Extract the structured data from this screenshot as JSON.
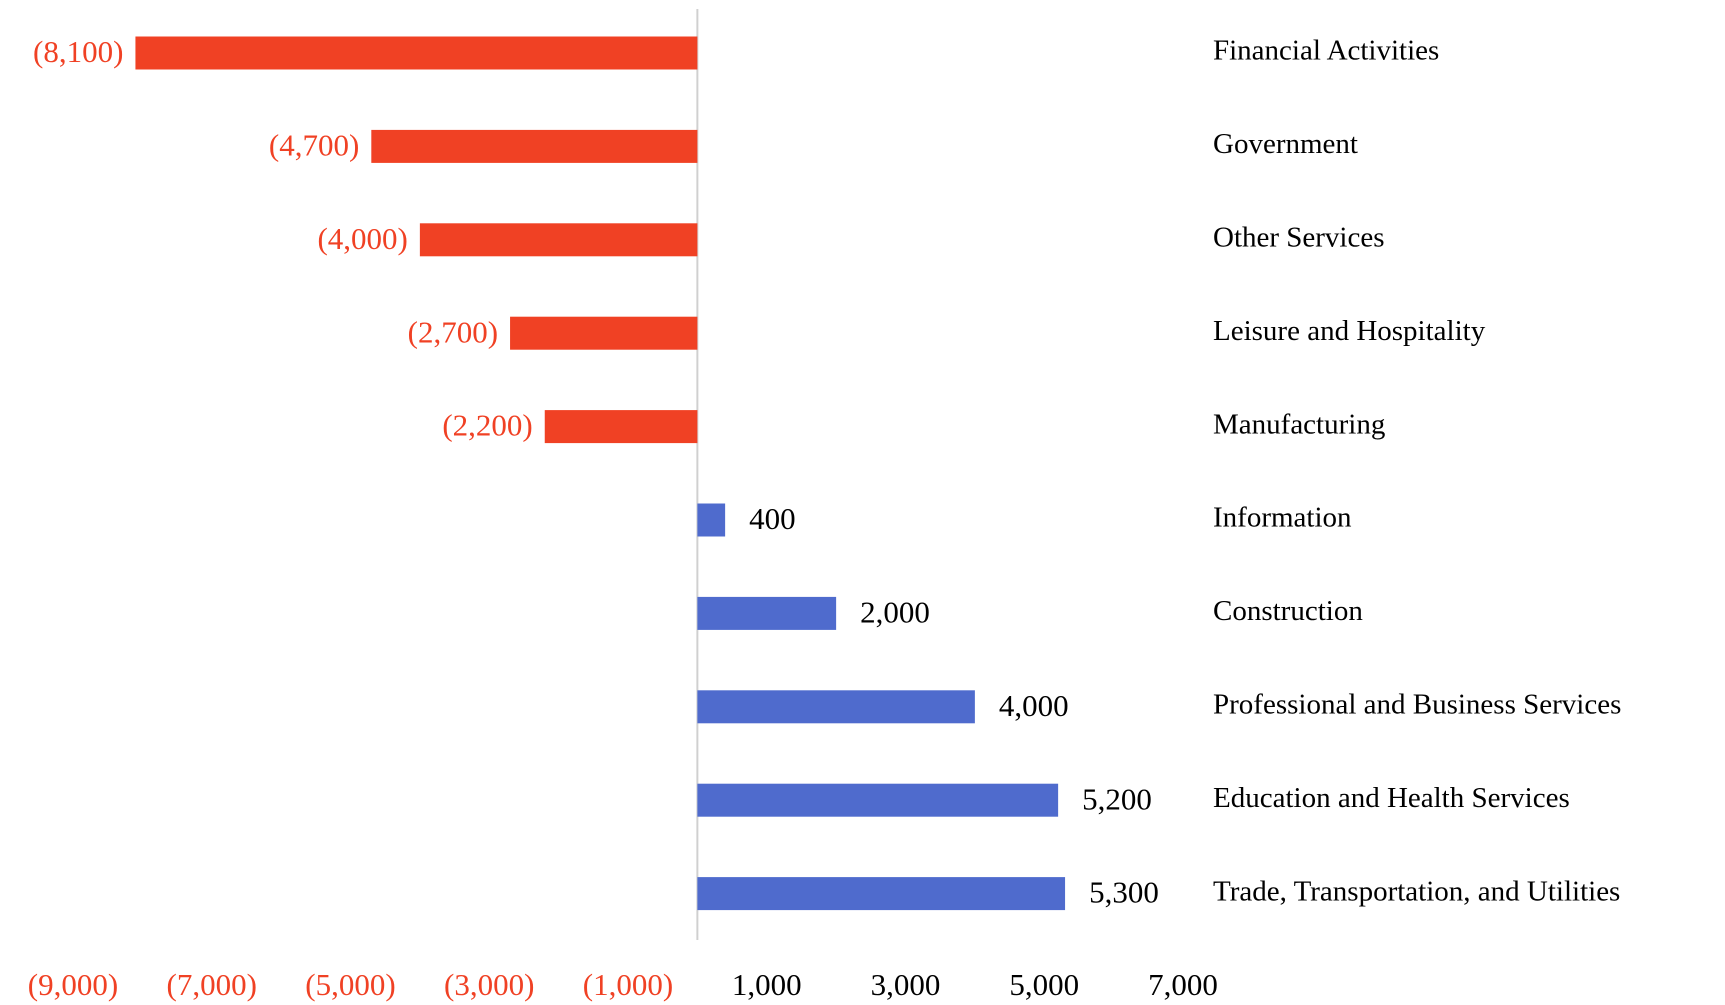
{
  "chart_data": {
    "type": "bar",
    "orientation": "horizontal",
    "categories": [
      "Financial Activities",
      "Government",
      "Other Services",
      "Leisure and Hospitality",
      "Manufacturing",
      "Information",
      "Construction",
      "Professional and Business Services",
      "Education and Health Services",
      "Trade, Transportation, and Utilities"
    ],
    "values": [
      -8100,
      -4700,
      -4000,
      -2700,
      -2200,
      400,
      2000,
      4000,
      5200,
      5300
    ],
    "value_labels": [
      "(8,100)",
      "(4,700)",
      "(4,000)",
      "(2,700)",
      "(2,200)",
      "400",
      "2,000",
      "4,000",
      "5,200",
      "5,300"
    ],
    "colors": {
      "negative": "#f04124",
      "positive": "#4f6bcd"
    },
    "xlim": [
      -9000,
      7000
    ],
    "xticks": [
      {
        "value": -9000,
        "label": "(9,000)"
      },
      {
        "value": -7000,
        "label": "(7,000)"
      },
      {
        "value": -5000,
        "label": "(5,000)"
      },
      {
        "value": -3000,
        "label": "(3,000)"
      },
      {
        "value": -1000,
        "label": "(1,000)"
      },
      {
        "value": 1000,
        "label": "1,000"
      },
      {
        "value": 3000,
        "label": "3,000"
      },
      {
        "value": 5000,
        "label": "5,000"
      },
      {
        "value": 7000,
        "label": "7,000"
      }
    ],
    "grid": false
  }
}
